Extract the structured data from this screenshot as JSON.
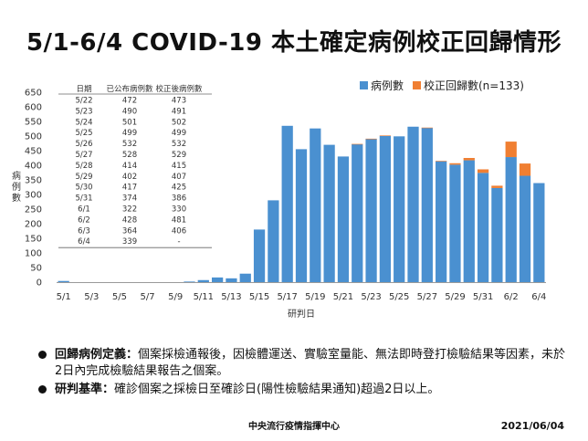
{
  "title": "5/1-6/4 COVID-19 本土確定病例校正回歸情形",
  "chart_data": {
    "type": "bar",
    "stacked": true,
    "categories": [
      "5/1",
      "5/2",
      "5/3",
      "5/4",
      "5/5",
      "5/6",
      "5/7",
      "5/8",
      "5/9",
      "5/10",
      "5/11",
      "5/12",
      "5/13",
      "5/14",
      "5/15",
      "5/16",
      "5/17",
      "5/18",
      "5/19",
      "5/20",
      "5/21",
      "5/22",
      "5/23",
      "5/24",
      "5/25",
      "5/26",
      "5/27",
      "5/28",
      "5/29",
      "5/30",
      "5/31",
      "6/1",
      "6/2",
      "6/3",
      "6/4"
    ],
    "x_tick_labels": [
      "5/1",
      "5/3",
      "5/5",
      "5/7",
      "5/9",
      "5/11",
      "5/13",
      "5/15",
      "5/17",
      "5/19",
      "5/21",
      "5/23",
      "5/25",
      "5/27",
      "5/29",
      "5/31",
      "6/2",
      "6/4"
    ],
    "y_tick_labels": [
      "0",
      "50",
      "100",
      "150",
      "200",
      "250",
      "300",
      "350",
      "400",
      "450",
      "500",
      "550",
      "600",
      "650"
    ],
    "ylim": [
      0,
      650
    ],
    "xlabel": "研判日",
    "ylabel": "病例數",
    "legend_position": "top-right",
    "series": [
      {
        "name": "病例數",
        "color": "#4a90d0",
        "values": [
          4,
          0,
          0,
          0,
          0,
          0,
          0,
          0,
          0,
          2,
          7,
          16,
          13,
          29,
          180,
          280,
          535,
          455,
          526,
          470,
          430,
          472,
          490,
          501,
          499,
          532,
          528,
          414,
          402,
          417,
          374,
          322,
          428,
          364,
          339
        ]
      },
      {
        "name": "校正回歸數(n=133)",
        "color": "#f07f32",
        "values": [
          0,
          0,
          0,
          0,
          0,
          0,
          0,
          0,
          0,
          0,
          0,
          0,
          0,
          0,
          0,
          0,
          0,
          0,
          0,
          0,
          0,
          1,
          1,
          1,
          0,
          0,
          1,
          1,
          5,
          8,
          12,
          8,
          53,
          42,
          0
        ]
      }
    ],
    "table": {
      "headers": [
        "日期",
        "已公布病例數",
        "校正後病例數"
      ],
      "rows": [
        [
          "5/22",
          "472",
          "473"
        ],
        [
          "5/23",
          "490",
          "491"
        ],
        [
          "5/24",
          "501",
          "502"
        ],
        [
          "5/25",
          "499",
          "499"
        ],
        [
          "5/26",
          "532",
          "532"
        ],
        [
          "5/27",
          "528",
          "529"
        ],
        [
          "5/28",
          "414",
          "415"
        ],
        [
          "5/29",
          "402",
          "407"
        ],
        [
          "5/30",
          "417",
          "425"
        ],
        [
          "5/31",
          "374",
          "386"
        ],
        [
          "6/1",
          "322",
          "330"
        ],
        [
          "6/2",
          "428",
          "481"
        ],
        [
          "6/3",
          "364",
          "406"
        ],
        [
          "6/4",
          "339",
          "-"
        ]
      ]
    }
  },
  "notes": [
    {
      "label": "回歸病例定義：",
      "text": "個案採檢通報後，因檢體運送、實驗室量能、無法即時登打檢驗結果等因素，未於2日內完成檢驗結果報告之個案。"
    },
    {
      "label": "研判基準：",
      "text": "確診個案之採檢日至確診日(陽性檢驗結果通知)超過2日以上。"
    }
  ],
  "footer": {
    "org": "中央流行疫情指揮中心",
    "date": "2021/06/04"
  }
}
